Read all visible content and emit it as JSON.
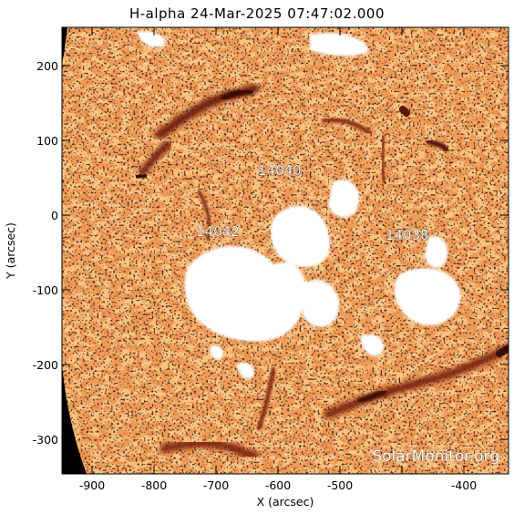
{
  "title": "H-alpha 24-Mar-2025 07:47:02.000",
  "x_axis": {
    "label": "X (arcsec)",
    "ticks": [
      "-900",
      "-800",
      "-700",
      "-600",
      "-500",
      "-400"
    ]
  },
  "y_axis": {
    "label": "Y (arcsec)",
    "ticks": [
      "200",
      "100",
      "0",
      "-100",
      "-200",
      "-300"
    ]
  },
  "active_regions": [
    {
      "id": "14040",
      "x": -668,
      "y": 60
    },
    {
      "id": "14042",
      "x": -752,
      "y": -20
    },
    {
      "id": "14038",
      "x": -480,
      "y": -25
    }
  ],
  "watermark": "SolarMonitor.org",
  "colors": {
    "chromosphere": "#e8843a",
    "filament": "#5a1808",
    "plage": "#ffffff",
    "background": "#000000"
  }
}
